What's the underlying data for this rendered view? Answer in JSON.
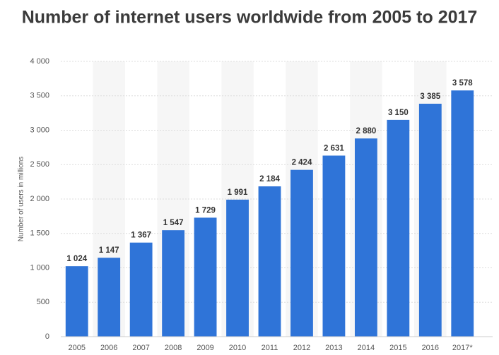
{
  "chart_data": {
    "type": "bar",
    "title": "Number of internet users worldwide from 2005 to 2017",
    "y_label": "Number of users in millions",
    "categories": [
      "2005",
      "2006",
      "2007",
      "2008",
      "2009",
      "2010",
      "2011",
      "2012",
      "2013",
      "2014",
      "2015",
      "2016",
      "2017*"
    ],
    "values": [
      1024,
      1147,
      1367,
      1547,
      1729,
      1991,
      2184,
      2424,
      2631,
      2880,
      3150,
      3385,
      3578
    ],
    "value_labels": [
      "1 024",
      "1 147",
      "1 367",
      "1 547",
      "1 729",
      "1 991",
      "2 184",
      "2 424",
      "2 631",
      "2 880",
      "3 150",
      "3 385",
      "3 578"
    ],
    "color": "#2f74d8",
    "ylim": [
      0,
      4000
    ],
    "yticks": [
      0,
      500,
      {
        "value": 1000,
        "label": "1 000"
      },
      {
        "value": 1500,
        "label": "1 500"
      },
      {
        "value": 2000,
        "label": "2 000"
      },
      {
        "value": 2500,
        "label": "2 500"
      },
      {
        "value": 3000,
        "label": "3 000"
      },
      {
        "value": 3500,
        "label": "3 500"
      },
      {
        "value": 4000,
        "label": "4 000"
      }
    ],
    "grid": true
  }
}
